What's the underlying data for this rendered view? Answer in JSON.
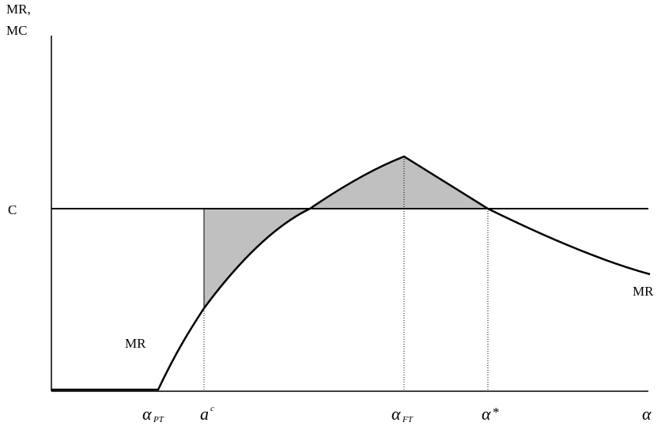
{
  "diagram": {
    "y_axis_title_line1": "MR,",
    "y_axis_title_line2": "MC",
    "c_level_label": "C",
    "mr_label_left": "MR",
    "mr_label_right": "MR",
    "x_ticks": [
      {
        "base": "α",
        "sub": "PT",
        "sup": ""
      },
      {
        "base": "a",
        "sub": "",
        "sup": "c"
      },
      {
        "base": "α",
        "sub": "FT",
        "sup": ""
      },
      {
        "base": "α",
        "sub": "",
        "sup": "",
        "suffix": "*"
      },
      {
        "base": "α",
        "sub": "",
        "sup": ""
      }
    ],
    "colors": {
      "line": "#000000",
      "shaded_area": "#c0c0c0",
      "background": "#ffffff"
    }
  }
}
